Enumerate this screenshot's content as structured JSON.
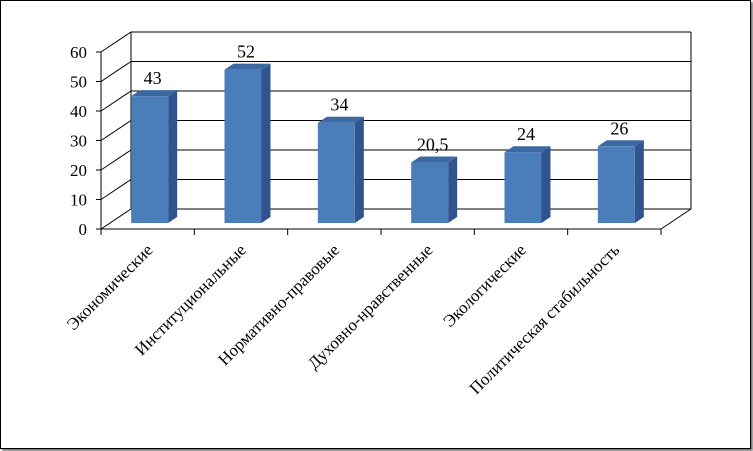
{
  "chart_data": {
    "type": "bar",
    "style": "3d-column",
    "categories": [
      "Экономические",
      "Институциональные",
      "Нормативно-правовые",
      "Духовно-нравственные",
      "Экологические",
      "Политическая стабильность"
    ],
    "values": [
      43,
      52,
      34,
      20.5,
      24,
      26
    ],
    "data_labels": [
      "43",
      "52",
      "34",
      "20,5",
      "24",
      "26"
    ],
    "title": "",
    "xlabel": "",
    "ylabel": "",
    "ylim": [
      0,
      60
    ],
    "yticks": [
      0,
      10,
      20,
      30,
      40,
      50,
      60
    ],
    "grid": true,
    "legend": "none",
    "colors": {
      "bar_front": "#4a7ebb",
      "bar_side": "#2f5490",
      "bar_top": "#3d69a3",
      "grid": "#000000",
      "background": "#ffffff"
    }
  }
}
